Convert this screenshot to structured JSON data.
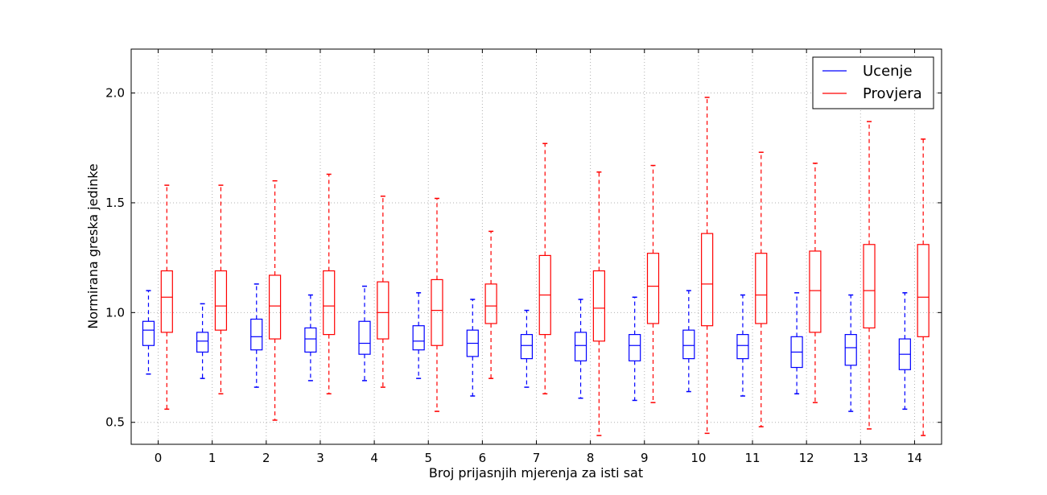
{
  "chart_data": {
    "type": "boxplot",
    "title": "",
    "xlabel": "Broj prijasnjih mjerenja za isti sat",
    "ylabel": "Normirana greska jedinke",
    "ylim": [
      0.4,
      2.2
    ],
    "yticks": [
      0.5,
      1.0,
      1.5,
      2.0
    ],
    "ytick_labels": [
      "0.5",
      "1.0",
      "1.5",
      "2.0"
    ],
    "categories": [
      "0",
      "1",
      "2",
      "3",
      "4",
      "5",
      "6",
      "7",
      "8",
      "9",
      "10",
      "11",
      "12",
      "13",
      "14"
    ],
    "grid": true,
    "legend_position": "top-right",
    "series": [
      {
        "name": "Ucenje",
        "color": "#0000ff",
        "boxes": [
          {
            "whislo": 0.72,
            "q1": 0.85,
            "med": 0.92,
            "q3": 0.96,
            "whishi": 1.1
          },
          {
            "whislo": 0.7,
            "q1": 0.82,
            "med": 0.87,
            "q3": 0.91,
            "whishi": 1.04
          },
          {
            "whislo": 0.66,
            "q1": 0.83,
            "med": 0.89,
            "q3": 0.97,
            "whishi": 1.13
          },
          {
            "whislo": 0.69,
            "q1": 0.82,
            "med": 0.88,
            "q3": 0.93,
            "whishi": 1.08
          },
          {
            "whislo": 0.69,
            "q1": 0.81,
            "med": 0.86,
            "q3": 0.96,
            "whishi": 1.12
          },
          {
            "whislo": 0.7,
            "q1": 0.83,
            "med": 0.87,
            "q3": 0.94,
            "whishi": 1.09
          },
          {
            "whislo": 0.62,
            "q1": 0.8,
            "med": 0.86,
            "q3": 0.92,
            "whishi": 1.06
          },
          {
            "whislo": 0.66,
            "q1": 0.79,
            "med": 0.85,
            "q3": 0.9,
            "whishi": 1.01
          },
          {
            "whislo": 0.61,
            "q1": 0.78,
            "med": 0.85,
            "q3": 0.91,
            "whishi": 1.06
          },
          {
            "whislo": 0.6,
            "q1": 0.78,
            "med": 0.85,
            "q3": 0.9,
            "whishi": 1.07
          },
          {
            "whislo": 0.64,
            "q1": 0.79,
            "med": 0.85,
            "q3": 0.92,
            "whishi": 1.1
          },
          {
            "whislo": 0.62,
            "q1": 0.79,
            "med": 0.85,
            "q3": 0.9,
            "whishi": 1.08
          },
          {
            "whislo": 0.63,
            "q1": 0.75,
            "med": 0.82,
            "q3": 0.89,
            "whishi": 1.09
          },
          {
            "whislo": 0.55,
            "q1": 0.76,
            "med": 0.84,
            "q3": 0.9,
            "whishi": 1.08
          },
          {
            "whislo": 0.56,
            "q1": 0.74,
            "med": 0.81,
            "q3": 0.88,
            "whishi": 1.09
          }
        ]
      },
      {
        "name": "Provjera",
        "color": "#ff0000",
        "boxes": [
          {
            "whislo": 0.56,
            "q1": 0.91,
            "med": 1.07,
            "q3": 1.19,
            "whishi": 1.58
          },
          {
            "whislo": 0.63,
            "q1": 0.92,
            "med": 1.03,
            "q3": 1.19,
            "whishi": 1.58
          },
          {
            "whislo": 0.51,
            "q1": 0.88,
            "med": 1.03,
            "q3": 1.17,
            "whishi": 1.6
          },
          {
            "whislo": 0.63,
            "q1": 0.9,
            "med": 1.03,
            "q3": 1.19,
            "whishi": 1.63
          },
          {
            "whislo": 0.66,
            "q1": 0.88,
            "med": 1.0,
            "q3": 1.14,
            "whishi": 1.53
          },
          {
            "whislo": 0.55,
            "q1": 0.85,
            "med": 1.01,
            "q3": 1.15,
            "whishi": 1.52
          },
          {
            "whislo": 0.7,
            "q1": 0.95,
            "med": 1.03,
            "q3": 1.13,
            "whishi": 1.37
          },
          {
            "whislo": 0.63,
            "q1": 0.9,
            "med": 1.08,
            "q3": 1.26,
            "whishi": 1.77
          },
          {
            "whislo": 0.44,
            "q1": 0.87,
            "med": 1.02,
            "q3": 1.19,
            "whishi": 1.64
          },
          {
            "whislo": 0.59,
            "q1": 0.95,
            "med": 1.12,
            "q3": 1.27,
            "whishi": 1.67
          },
          {
            "whislo": 0.45,
            "q1": 0.94,
            "med": 1.13,
            "q3": 1.36,
            "whishi": 1.98
          },
          {
            "whislo": 0.48,
            "q1": 0.95,
            "med": 1.08,
            "q3": 1.27,
            "whishi": 1.73
          },
          {
            "whislo": 0.59,
            "q1": 0.91,
            "med": 1.1,
            "q3": 1.28,
            "whishi": 1.68
          },
          {
            "whislo": 0.47,
            "q1": 0.93,
            "med": 1.1,
            "q3": 1.31,
            "whishi": 1.87
          },
          {
            "whislo": 0.44,
            "q1": 0.89,
            "med": 1.07,
            "q3": 1.31,
            "whishi": 1.79
          }
        ]
      }
    ]
  }
}
